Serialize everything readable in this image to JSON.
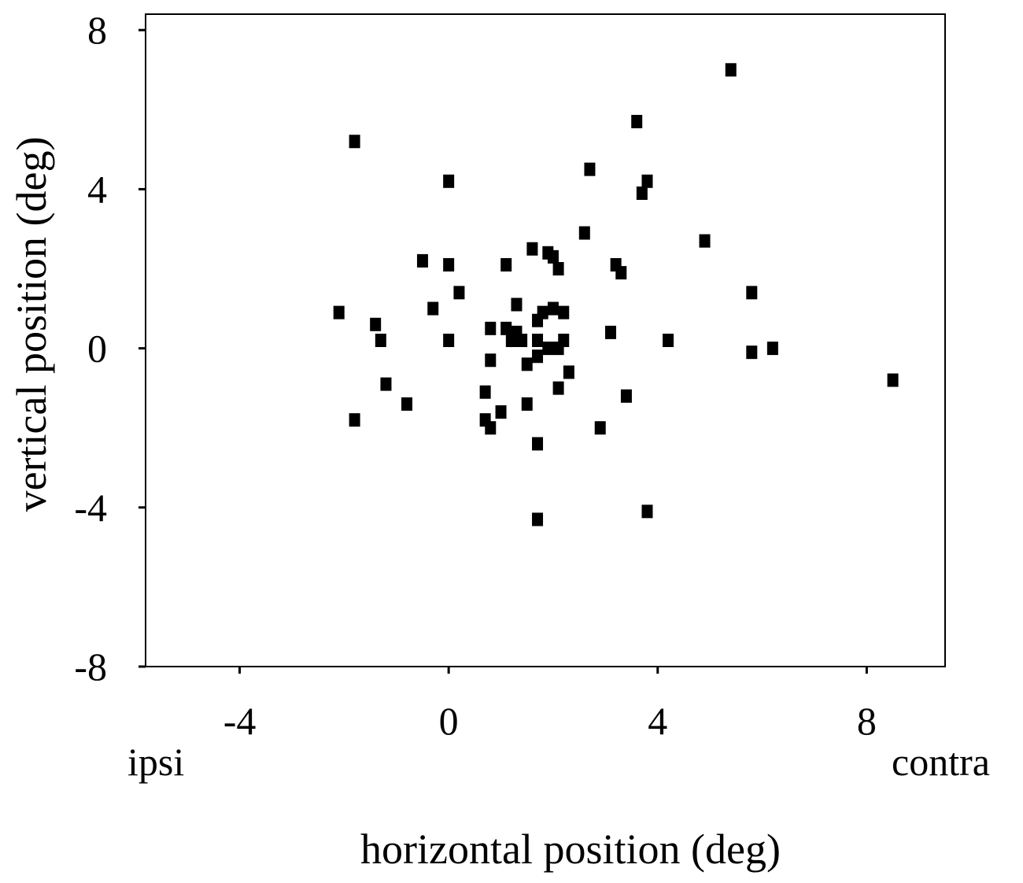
{
  "chart_data": {
    "type": "scatter",
    "xlabel": "horizontal position (deg)",
    "ylabel": "vertical position (deg)",
    "xlim": [
      -5.8,
      9.5
    ],
    "ylim": [
      -8,
      8.4
    ],
    "xticks": [
      -4,
      0,
      4,
      8
    ],
    "yticks": [
      -8,
      -4,
      0,
      4,
      8
    ],
    "x_end_labels": {
      "left": "ipsi",
      "right": "contra"
    },
    "grid": false,
    "legend": "none",
    "marker": "square",
    "color": "#000000",
    "points": [
      [
        5.4,
        7.0
      ],
      [
        3.6,
        5.7
      ],
      [
        -1.8,
        5.2
      ],
      [
        0.0,
        4.2
      ],
      [
        2.7,
        4.5
      ],
      [
        3.8,
        4.2
      ],
      [
        3.7,
        3.9
      ],
      [
        2.6,
        2.9
      ],
      [
        4.9,
        2.7
      ],
      [
        1.6,
        2.5
      ],
      [
        1.9,
        2.4
      ],
      [
        2.0,
        2.3
      ],
      [
        2.1,
        2.0
      ],
      [
        1.1,
        2.1
      ],
      [
        -0.5,
        2.2
      ],
      [
        0.0,
        2.1
      ],
      [
        3.2,
        2.1
      ],
      [
        3.3,
        1.9
      ],
      [
        0.2,
        1.4
      ],
      [
        5.8,
        1.4
      ],
      [
        1.3,
        1.1
      ],
      [
        -2.1,
        0.9
      ],
      [
        -0.3,
        1.0
      ],
      [
        1.8,
        0.9
      ],
      [
        2.0,
        1.0
      ],
      [
        2.2,
        0.9
      ],
      [
        -1.4,
        0.6
      ],
      [
        1.7,
        0.7
      ],
      [
        0.8,
        0.5
      ],
      [
        1.1,
        0.5
      ],
      [
        1.3,
        0.4
      ],
      [
        3.1,
        0.4
      ],
      [
        -1.3,
        0.2
      ],
      [
        0.0,
        0.2
      ],
      [
        1.2,
        0.2
      ],
      [
        1.4,
        0.2
      ],
      [
        1.7,
        0.2
      ],
      [
        2.2,
        0.2
      ],
      [
        4.2,
        0.2
      ],
      [
        1.9,
        0.0
      ],
      [
        2.1,
        0.0
      ],
      [
        6.2,
        0.0
      ],
      [
        1.7,
        -0.2
      ],
      [
        5.8,
        -0.1
      ],
      [
        0.8,
        -0.3
      ],
      [
        1.5,
        -0.4
      ],
      [
        2.3,
        -0.6
      ],
      [
        -1.2,
        -0.9
      ],
      [
        8.5,
        -0.8
      ],
      [
        2.1,
        -1.0
      ],
      [
        0.7,
        -1.1
      ],
      [
        3.4,
        -1.2
      ],
      [
        -0.8,
        -1.4
      ],
      [
        1.5,
        -1.4
      ],
      [
        1.0,
        -1.6
      ],
      [
        0.7,
        -1.8
      ],
      [
        -1.8,
        -1.8
      ],
      [
        0.8,
        -2.0
      ],
      [
        2.9,
        -2.0
      ],
      [
        1.7,
        -2.4
      ],
      [
        1.7,
        -4.3
      ],
      [
        3.8,
        -4.1
      ]
    ]
  }
}
